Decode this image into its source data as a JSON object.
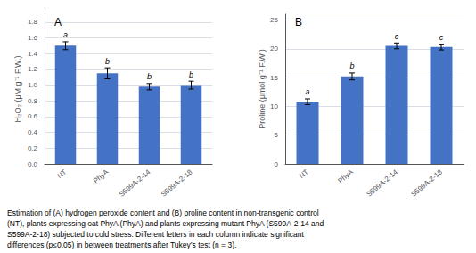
{
  "chart_data": [
    {
      "type": "bar",
      "title": "A",
      "categories": [
        "NT",
        "PhyA",
        "S599A-2-14",
        "S599A-2-18"
      ],
      "values": [
        1.5,
        1.15,
        0.98,
        1.0
      ],
      "errors": [
        0.05,
        0.07,
        0.04,
        0.05
      ],
      "annotations": [
        "a",
        "b",
        "b",
        "b"
      ],
      "ylabel": "H₂O₂ (μM g⁻¹ F.W.)",
      "color": "#4472C4",
      "ylim": [
        0,
        1.9
      ],
      "yticks": [
        {
          "value": 0,
          "label": "0.0"
        },
        0.2,
        0.4,
        0.6,
        0.8,
        {
          "value": 1.0,
          "label": "1.0"
        },
        1.2,
        1.4,
        1.6,
        1.8
      ],
      "grid": true
    },
    {
      "type": "bar",
      "title": "B",
      "categories": [
        "NT",
        "PhyA",
        "S599A-2-14",
        "S599A-2-18"
      ],
      "values": [
        10.8,
        15.2,
        20.5,
        20.3
      ],
      "errors": [
        0.5,
        0.6,
        0.5,
        0.5
      ],
      "annotations": [
        "a",
        "b",
        "c",
        "c"
      ],
      "ylabel": "Proline (μmol g⁻¹ F.W.)",
      "color": "#4472C4",
      "ylim": [
        0,
        26
      ],
      "yticks": [
        0,
        5,
        10,
        15,
        20,
        25
      ],
      "grid": true
    }
  ],
  "caption": [
    "Estimation of (A) hydrogen peroxide content and (B) proline content in non-transgenic control",
    "(NT), plants expressing oat PhyA (PhyA) and plants expressing mutant PhyA (S599A-2-14 and",
    "S599A-2-18) subjected to cold stress. Different letters in each column indicate significant",
    "differences (p≤0.05) in between treatments after Tukey’s test (n = 3)."
  ]
}
